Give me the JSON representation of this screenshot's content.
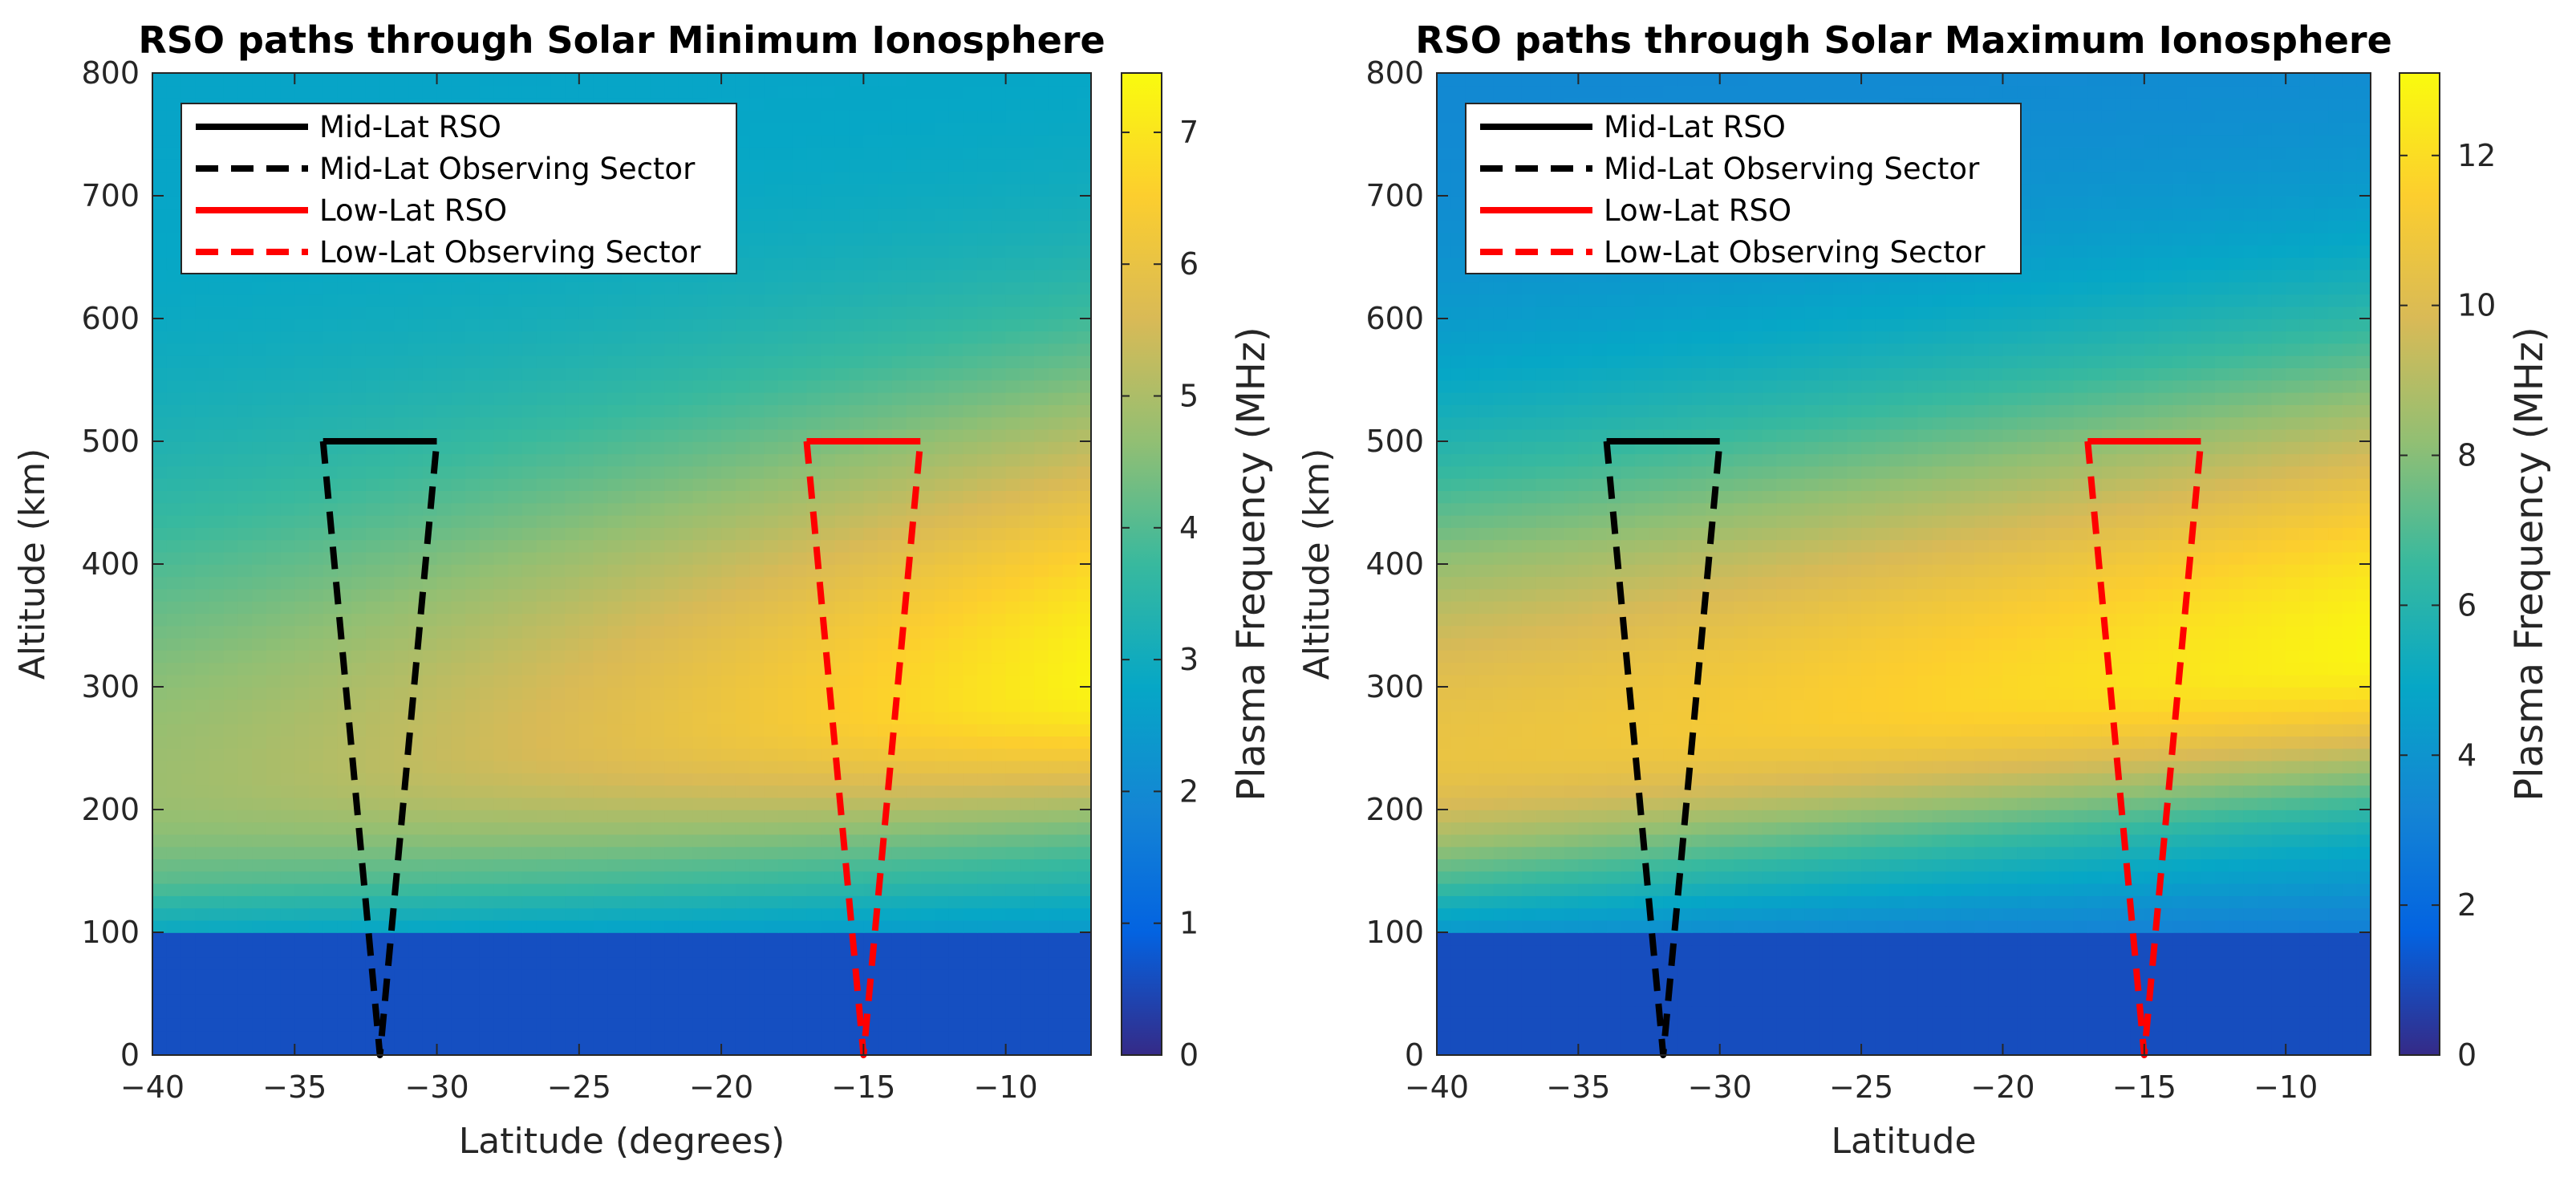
{
  "colors": {
    "parula": [
      "#352a87",
      "#0363e1",
      "#1485d4",
      "#06a7c6",
      "#38b99e",
      "#92bf73",
      "#d9ba56",
      "#fcce2e",
      "#f9fb0e"
    ],
    "mid_lat": "#000000",
    "low_lat": "#ff0000"
  },
  "chart_data": [
    {
      "type": "heatmap",
      "title": "RSO paths through Solar Minimum Ionosphere",
      "xlabel": "Latitude (degrees)",
      "ylabel": "Altitude (km)",
      "xlim": [
        -40,
        -7
      ],
      "ylim": [
        0,
        800
      ],
      "xticks": [
        -40,
        -35,
        -30,
        -25,
        -20,
        -15,
        -10
      ],
      "xtick_labels": [
        "−40",
        "−35",
        "−30",
        "−25",
        "−20",
        "−15",
        "−10"
      ],
      "yticks": [
        0,
        100,
        200,
        300,
        400,
        500,
        600,
        700,
        800
      ],
      "ytick_labels": [
        "0",
        "100",
        "200",
        "300",
        "400",
        "500",
        "600",
        "700",
        "800"
      ],
      "colorbar": {
        "label": "Plasma Frequency (MHz)",
        "range": [
          0,
          7.45
        ],
        "ticks": [
          0,
          1,
          2,
          3,
          4,
          5,
          6,
          7
        ],
        "tick_labels": [
          "0",
          "1",
          "2",
          "3",
          "4",
          "5",
          "6",
          "7"
        ]
      },
      "field_model": {
        "below_100km_mhz": 0.6,
        "peak_altitude_km_at_lat_minus40": 220,
        "peak_altitude_km_at_lat_minus7": 305,
        "peak_value_mhz_at_lat_minus40": 4.8,
        "peak_value_mhz_at_lat_minus7": 7.3,
        "background_mhz_at_800km": 2.7
      },
      "legend": {
        "location": "top-left",
        "entries": [
          {
            "label": "Mid-Lat RSO",
            "color": "#000000",
            "style": "solid"
          },
          {
            "label": "Mid-Lat Observing Sector",
            "color": "#000000",
            "style": "dashed"
          },
          {
            "label": "Low-Lat RSO",
            "color": "#ff0000",
            "style": "solid"
          },
          {
            "label": "Low-Lat Observing Sector",
            "color": "#ff0000",
            "style": "dashed"
          }
        ]
      },
      "series": [
        {
          "name": "Mid-Lat RSO",
          "color": "#000000",
          "style": "solid",
          "x": [
            -34,
            -30
          ],
          "y": [
            500,
            500
          ]
        },
        {
          "name": "Mid-Lat Observing Sector",
          "color": "#000000",
          "style": "dashed",
          "x": [
            -34,
            -32,
            -30
          ],
          "y": [
            500,
            0,
            500
          ]
        },
        {
          "name": "Low-Lat RSO",
          "color": "#ff0000",
          "style": "solid",
          "x": [
            -17,
            -13
          ],
          "y": [
            500,
            500
          ]
        },
        {
          "name": "Low-Lat Observing Sector",
          "color": "#ff0000",
          "style": "dashed",
          "x": [
            -17,
            -15,
            -13
          ],
          "y": [
            500,
            0,
            500
          ]
        }
      ]
    },
    {
      "type": "heatmap",
      "title": "RSO paths through Solar Maximum Ionosphere",
      "xlabel": "Latitude",
      "ylabel": "Altitude (km)",
      "xlim": [
        -40,
        -7
      ],
      "ylim": [
        0,
        800
      ],
      "xticks": [
        -40,
        -35,
        -30,
        -25,
        -20,
        -15,
        -10
      ],
      "xtick_labels": [
        "−40",
        "−35",
        "−30",
        "−25",
        "−20",
        "−15",
        "−10"
      ],
      "yticks": [
        0,
        100,
        200,
        300,
        400,
        500,
        600,
        700,
        800
      ],
      "ytick_labels": [
        "0",
        "100",
        "200",
        "300",
        "400",
        "500",
        "600",
        "700",
        "800"
      ],
      "colorbar": {
        "label": "Plasma Frequency (MHz)",
        "range": [
          0,
          13.1
        ],
        "ticks": [
          0,
          2,
          4,
          6,
          8,
          10,
          12
        ],
        "tick_labels": [
          "0",
          "2",
          "4",
          "6",
          "8",
          "10",
          "12"
        ]
      },
      "field_model": {
        "below_100km_mhz": 1.0,
        "peak_altitude_km_at_lat_minus40": 245,
        "peak_altitude_km_at_lat_minus7": 330,
        "peak_value_mhz_at_lat_minus40": 10.6,
        "peak_value_mhz_at_lat_minus7": 12.9,
        "background_mhz_at_800km": 3.4
      },
      "legend": {
        "location": "top-left",
        "entries": [
          {
            "label": "Mid-Lat RSO",
            "color": "#000000",
            "style": "solid"
          },
          {
            "label": "Mid-Lat Observing Sector",
            "color": "#000000",
            "style": "dashed"
          },
          {
            "label": "Low-Lat RSO",
            "color": "#ff0000",
            "style": "solid"
          },
          {
            "label": "Low-Lat Observing Sector",
            "color": "#ff0000",
            "style": "dashed"
          }
        ]
      },
      "series": [
        {
          "name": "Mid-Lat RSO",
          "color": "#000000",
          "style": "solid",
          "x": [
            -34,
            -30
          ],
          "y": [
            500,
            500
          ]
        },
        {
          "name": "Mid-Lat Observing Sector",
          "color": "#000000",
          "style": "dashed",
          "x": [
            -34,
            -32,
            -30
          ],
          "y": [
            500,
            0,
            500
          ]
        },
        {
          "name": "Low-Lat RSO",
          "color": "#ff0000",
          "style": "solid",
          "x": [
            -17,
            -13
          ],
          "y": [
            500,
            500
          ]
        },
        {
          "name": "Low-Lat Observing Sector",
          "color": "#ff0000",
          "style": "dashed",
          "x": [
            -17,
            -15,
            -13
          ],
          "y": [
            500,
            0,
            500
          ]
        }
      ]
    }
  ]
}
